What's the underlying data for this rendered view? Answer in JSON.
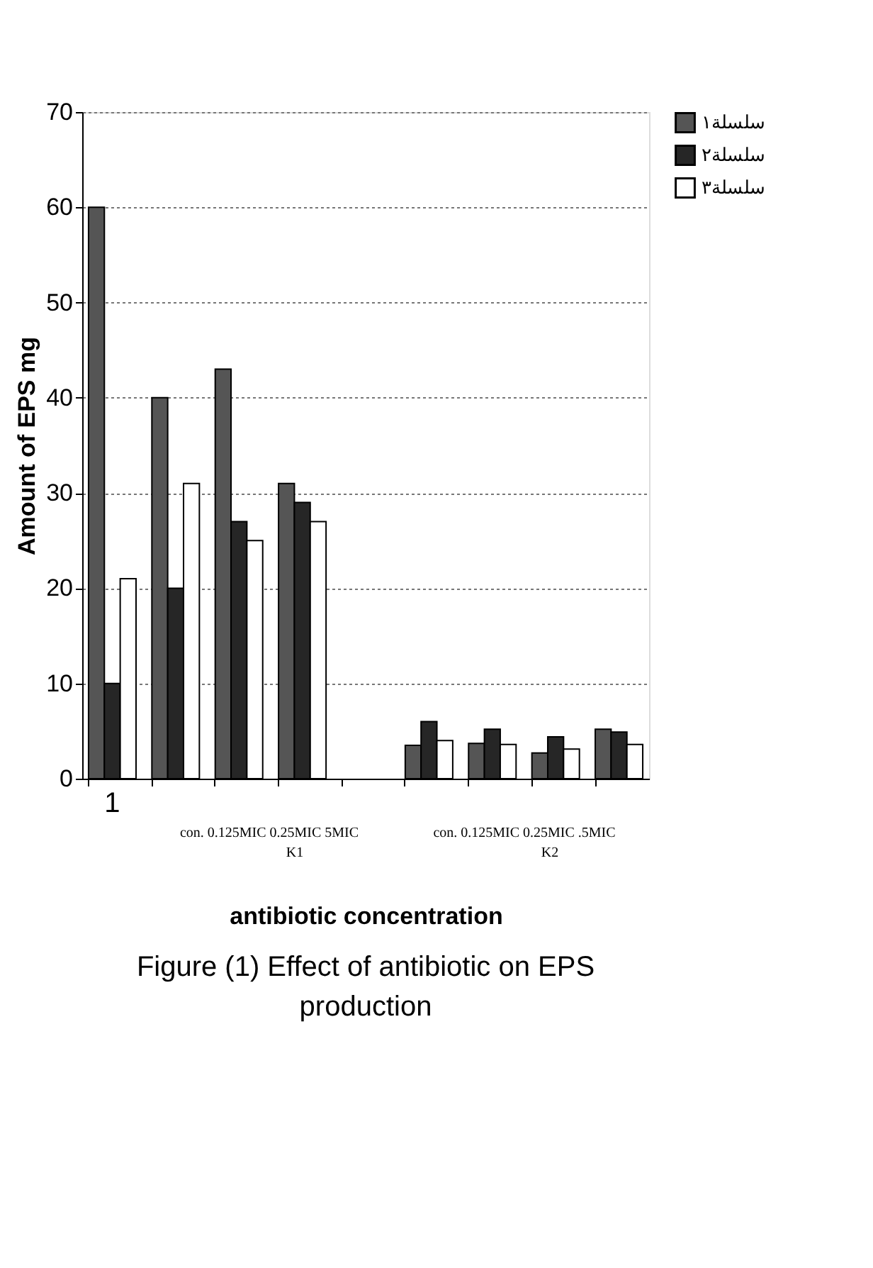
{
  "chart_data": {
    "type": "bar",
    "title": "Figure (1) Effect of antibiotic on EPS production",
    "xlabel": "antibiotic concentration",
    "ylabel": "Amount of EPS mg",
    "categories": [
      "1",
      null,
      null,
      null,
      null,
      null,
      null,
      null,
      null
    ],
    "series": [
      {
        "name": "سلسلة١",
        "color": "#555555",
        "values": [
          60,
          40,
          43,
          31,
          null,
          3.5,
          3.7,
          2.7,
          5.2
        ]
      },
      {
        "name": "سلسلة٢",
        "color": "#262626",
        "values": [
          10,
          20,
          27,
          29,
          null,
          6,
          5.2,
          4.4,
          4.9
        ]
      },
      {
        "name": "سلسلة٣",
        "color": "#ffffff",
        "values": [
          21,
          31,
          25,
          27,
          null,
          4,
          3.6,
          3.1,
          3.6
        ]
      }
    ],
    "annotations": [
      "con.   0.125MIC   0.25MIC   5MIC",
      "K1",
      "con.   0.125MIC   0.25MIC   .5MIC",
      "K2"
    ],
    "ylim": [
      0,
      70
    ],
    "yticks": [
      0,
      10,
      20,
      30,
      40,
      50,
      60,
      70
    ],
    "grid": "y",
    "legend": "right"
  }
}
